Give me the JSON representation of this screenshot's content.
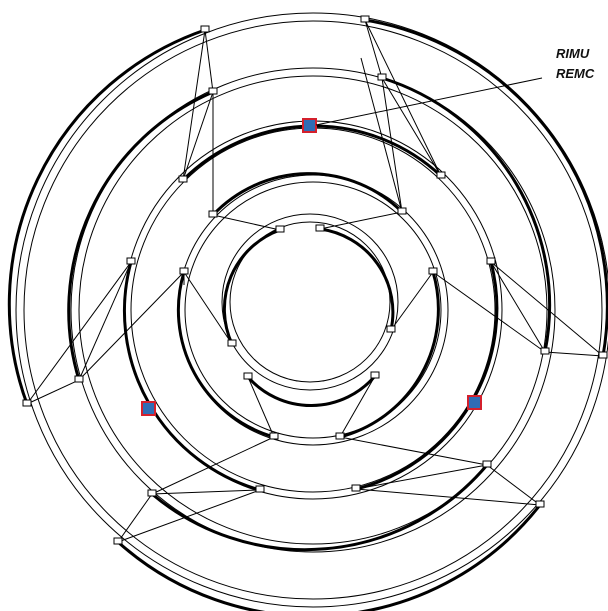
{
  "callout": {
    "line1": "RIMU",
    "line2": "REMC"
  },
  "colors": {
    "stroke": "#000000",
    "marker_fill": "#2f6db5",
    "marker_border": "#d4202c",
    "background": "#ffffff"
  },
  "diagram": {
    "type": "concentric ring track segments with connector links",
    "ring_count": 5,
    "marker_count": 3,
    "marker_icon": "blue-square-red-border"
  }
}
